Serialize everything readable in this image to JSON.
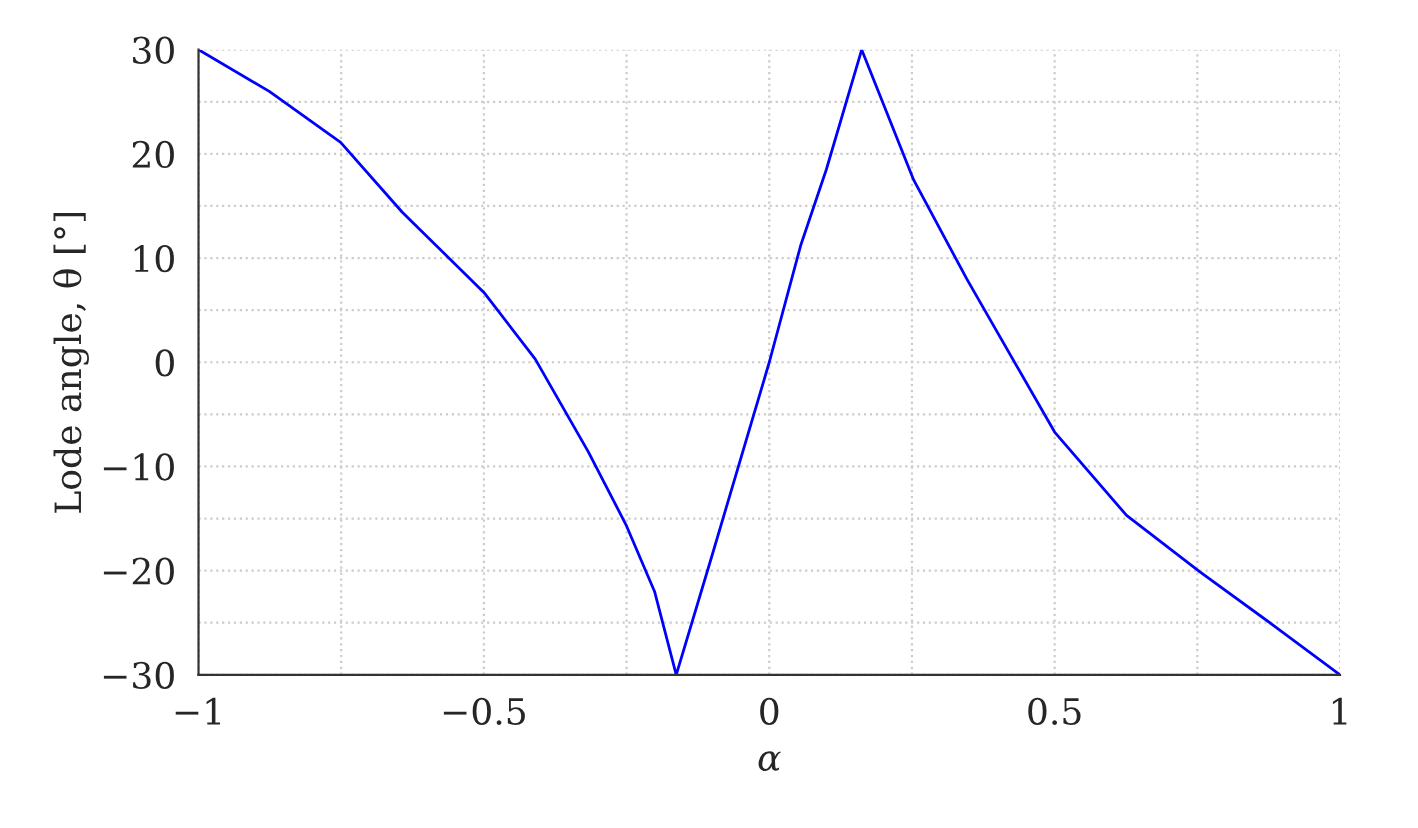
{
  "chart_data": {
    "type": "line",
    "xlabel": "α",
    "ylabel": "Lode angle, θ [°]",
    "series": [
      {
        "color": "#0000ff",
        "x": [
          -1,
          -0.876,
          -0.751,
          -0.643,
          -0.5,
          -0.41,
          -0.317,
          -0.251,
          -0.201,
          -0.163,
          -0.1,
          0,
          0.055,
          0.1,
          0.162,
          0.253,
          0.346,
          0.5,
          0.626,
          0.754,
          0.882,
          1
        ],
        "values": [
          30,
          26.0,
          21.1,
          14.4,
          6.7,
          0.3,
          -8.6,
          -15.6,
          -22.0,
          -30,
          -18.5,
          0,
          11.2,
          18.5,
          30,
          17.5,
          8.0,
          -6.7,
          -14.7,
          -20.1,
          -25.2,
          -30
        ]
      }
    ],
    "xlim": [
      -1,
      1
    ],
    "ylim": [
      -30,
      30
    ],
    "xticks": [
      {
        "value": -1,
        "label": "−1"
      },
      {
        "value": -0.75,
        "label": null
      },
      {
        "value": -0.5,
        "label": "−0.5"
      },
      {
        "value": -0.25,
        "label": null
      },
      0,
      {
        "value": 0.25,
        "label": null
      },
      0.5,
      {
        "value": 0.75,
        "label": null
      },
      1
    ],
    "yticks": [
      {
        "value": -30,
        "label": "−30"
      },
      {
        "value": -25,
        "label": null
      },
      {
        "value": -20,
        "label": "−20"
      },
      {
        "value": -15,
        "label": null
      },
      {
        "value": -10,
        "label": "−10"
      },
      {
        "value": -5,
        "label": null
      },
      0,
      {
        "value": 5,
        "label": null
      },
      10,
      {
        "value": 15,
        "label": null
      },
      20,
      {
        "value": 25,
        "label": null
      },
      30
    ],
    "grid": true,
    "marker": "none",
    "line_style": "solid",
    "legend": false
  }
}
